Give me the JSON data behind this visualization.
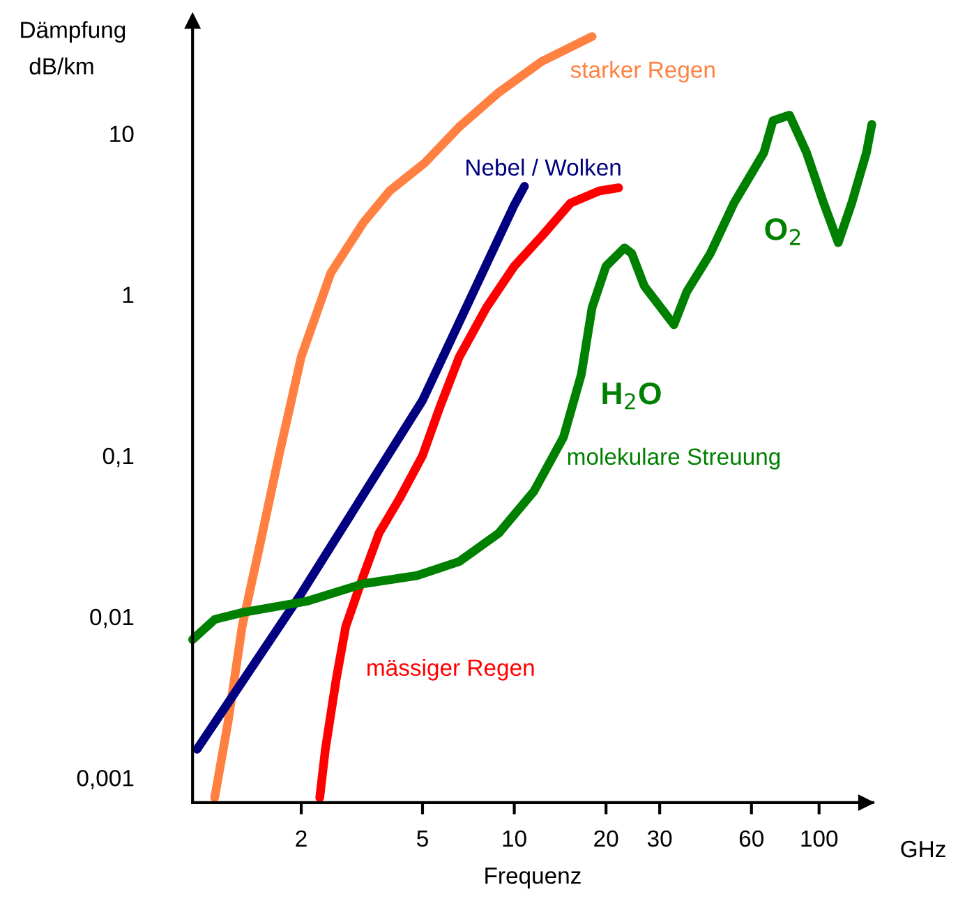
{
  "chart_data": {
    "type": "line",
    "xlabel": "Frequenz",
    "ylabel": "Dämpfung dB/km",
    "xlim": [
      0.88,
      150
    ],
    "ylim": [
      0.0007,
      50
    ],
    "log": "xy",
    "xticks": [
      2,
      5,
      10,
      20,
      30,
      60,
      100
    ],
    "yticks": [
      {
        "value": 0.001,
        "label": "0,001"
      },
      {
        "value": 0.01,
        "label": "0,01"
      },
      {
        "value": 0.1,
        "label": "0,1"
      },
      1,
      10
    ],
    "grid": false,
    "legend": false,
    "marker": "none",
    "line_style": "solid",
    "series": [
      {
        "name": "starker Regen",
        "color": "#ff8040",
        "x": [
          1.04,
          1.15,
          1.28,
          1.47,
          1.69,
          2,
          2.5,
          3.2,
          3.9,
          5.1,
          6.6,
          8.9,
          12.3,
          18
        ],
        "values": [
          0.00075,
          0.0022,
          0.0087,
          0.029,
          0.1,
          0.41,
          1.36,
          2.8,
          4.4,
          6.6,
          11,
          18,
          28,
          40
        ]
      },
      {
        "name": "Nebel / Wolken",
        "color": "#000080",
        "x": [
          0.91,
          2,
          5,
          10,
          10.8
        ],
        "values": [
          0.0015,
          0.0139,
          0.22,
          3.6,
          4.7
        ]
      },
      {
        "name": "mässiger Regen",
        "color": "#ff0000",
        "x": [
          2.3,
          2.4,
          2.6,
          2.8,
          3.2,
          3.6,
          4.2,
          5,
          5.7,
          6.6,
          8.1,
          10,
          12.3,
          15.3,
          19,
          22
        ],
        "values": [
          0.00075,
          0.0015,
          0.004,
          0.0087,
          0.018,
          0.033,
          0.054,
          0.1,
          0.2,
          0.41,
          0.83,
          1.5,
          2.3,
          3.7,
          4.4,
          4.6
        ]
      },
      {
        "name": "molekulare Streuung",
        "color": "#008000",
        "x": [
          0.88,
          1.04,
          1.28,
          2.1,
          3.2,
          4.8,
          6.6,
          8.9,
          11.6,
          14.5,
          16.6,
          18,
          20,
          23,
          24.3,
          26.7,
          33.4,
          36.8,
          44,
          52.6,
          65.9,
          70.6,
          80,
          91,
          103.5,
          115.6,
          128,
          143,
          149
        ],
        "values": [
          0.0072,
          0.0096,
          0.0106,
          0.0125,
          0.016,
          0.018,
          0.022,
          0.033,
          0.06,
          0.13,
          0.32,
          0.83,
          1.5,
          1.95,
          1.8,
          1.13,
          0.65,
          1.04,
          1.8,
          3.7,
          7.6,
          12,
          13,
          7.6,
          3.7,
          2.1,
          3.7,
          7.6,
          11.4
        ]
      }
    ],
    "annotations": [
      "H$_{2}$O",
      "O$_{2}$",
      "GHz"
    ]
  }
}
